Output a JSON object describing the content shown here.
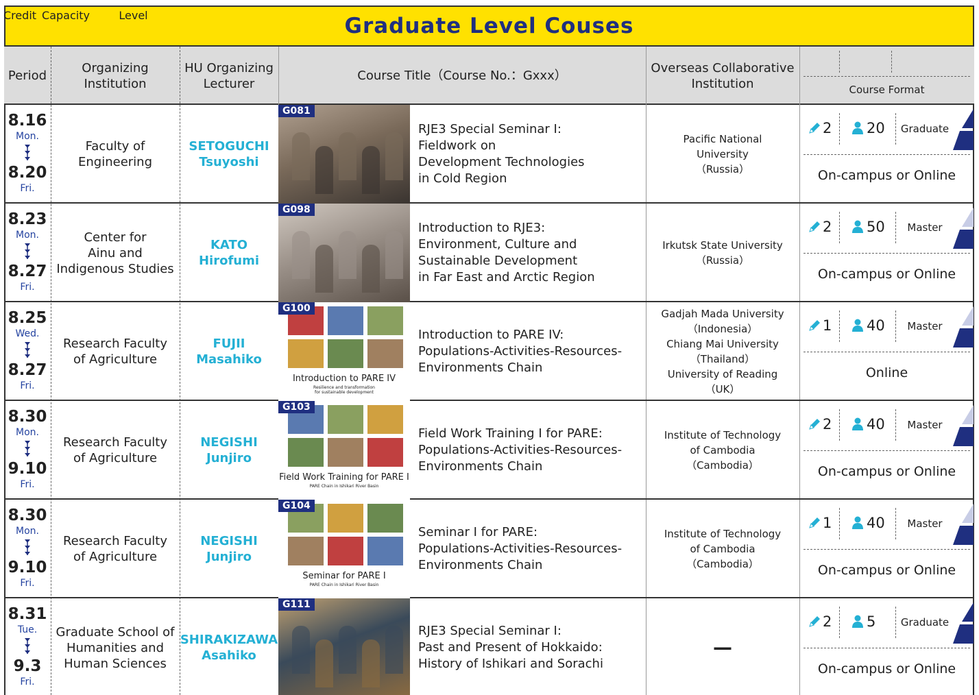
{
  "header": {
    "title": "Graduate Level Couses"
  },
  "columns": {
    "period": [
      "Period"
    ],
    "institution": [
      "Organizing",
      "Institution"
    ],
    "lecturer": [
      "HU Organizing",
      "Lecturer"
    ],
    "course": [
      "Course Title（Course No.：Gxxx）"
    ],
    "overseas": [
      "Overseas Collaborative",
      "Institution"
    ],
    "credit": "Credit",
    "capacity": "Capacity",
    "level": "Level",
    "format": "Course Format"
  },
  "rows": [
    {
      "start_date": "8.16",
      "start_day": "Mon.",
      "end_date": "8.20",
      "end_day": "Fri.",
      "institution": [
        "Faculty of",
        "Engineering"
      ],
      "lecturer": [
        "SETOGUCHI",
        "Tsuyoshi"
      ],
      "course_no": "G081",
      "title": [
        "RJE3 Special Seminar I:",
        "Fieldwork on",
        "Development Technologies",
        "in Cold Region"
      ],
      "overseas": [
        "Pacific National",
        "University",
        "（Russia）"
      ],
      "credit": 2,
      "capacity": 20,
      "level": "Graduate",
      "format": "On-campus or Online"
    },
    {
      "start_date": "8.23",
      "start_day": "Mon.",
      "end_date": "8.27",
      "end_day": "Fri.",
      "institution": [
        "Center for",
        "Ainu and",
        "Indigenous Studies"
      ],
      "lecturer": [
        "KATO",
        "Hirofumi"
      ],
      "course_no": "G098",
      "title": [
        "Introduction to RJE3:",
        "Environment, Culture and",
        "Sustainable Development",
        "in Far East and Arctic Region"
      ],
      "overseas": [
        "Irkutsk State University",
        "（Russia）"
      ],
      "credit": 2,
      "capacity": 50,
      "level": "Master",
      "format": "On-campus or Online"
    },
    {
      "start_date": "8.25",
      "start_day": "Wed.",
      "end_date": "8.27",
      "end_day": "Fri.",
      "institution": [
        "Research Faculty",
        "of Agriculture"
      ],
      "lecturer": [
        "FUJII",
        "Masahiko"
      ],
      "course_no": "G100",
      "image_caption": "Introduction to PARE IV",
      "image_subcaption": [
        "Resilience and transformation",
        "for sustainable development"
      ],
      "title": [
        "Introduction to PARE IV:",
        "Populations-Activities-Resources-",
        "Environments Chain"
      ],
      "overseas": [
        "Gadjah Mada University",
        "（Indonesia）",
        "Chiang Mai University",
        "（Thailand）",
        "University of Reading",
        "（UK）"
      ],
      "credit": 1,
      "capacity": 40,
      "level": "Master",
      "format": "Online"
    },
    {
      "start_date": "8.30",
      "start_day": "Mon.",
      "end_date": "9.10",
      "end_day": "Fri.",
      "institution": [
        "Research Faculty",
        "of Agriculture"
      ],
      "lecturer": [
        "NEGISHI",
        "Junjiro"
      ],
      "course_no": "G103",
      "image_caption": "Field Work Training for PARE I",
      "image_subcaption": [
        "PARE Chain in Ishikari River Basin"
      ],
      "title": [
        "Field Work Training I for PARE:",
        "Populations-Activities-Resources-",
        "Environments Chain"
      ],
      "overseas": [
        "Institute of Technology",
        "of Cambodia",
        "（Cambodia）"
      ],
      "credit": 2,
      "capacity": 40,
      "level": "Master",
      "format": "On-campus or Online"
    },
    {
      "start_date": "8.30",
      "start_day": "Mon.",
      "end_date": "9.10",
      "end_day": "Fri.",
      "institution": [
        "Research Faculty",
        "of Agriculture"
      ],
      "lecturer": [
        "NEGISHI",
        "Junjiro"
      ],
      "course_no": "G104",
      "image_caption": "Seminar for PARE I",
      "image_subcaption": [
        "PARE Chain in Ishikari River Basin"
      ],
      "title": [
        "Seminar I for PARE:",
        "Populations-Activities-Resources-",
        "Environments Chain"
      ],
      "overseas": [
        "Institute of Technology",
        "of Cambodia",
        "（Cambodia）"
      ],
      "credit": 1,
      "capacity": 40,
      "level": "Master",
      "format": "On-campus or Online"
    },
    {
      "start_date": "8.31",
      "start_day": "Tue.",
      "end_date": "9.3",
      "end_day": "Fri.",
      "institution": [
        "Graduate School of",
        "Humanities and",
        "Human Sciences"
      ],
      "lecturer": [
        "SHIRAKIZAWA",
        "Asahiko"
      ],
      "course_no": "G111",
      "title": [
        "RJE3 Special Seminar I:",
        "Past and Present of Hokkaido:",
        "History of Ishikari and Sorachi"
      ],
      "overseas": [
        "—"
      ],
      "credit": 2,
      "capacity": 5,
      "level": "Graduate",
      "format": "On-campus or Online"
    }
  ]
}
